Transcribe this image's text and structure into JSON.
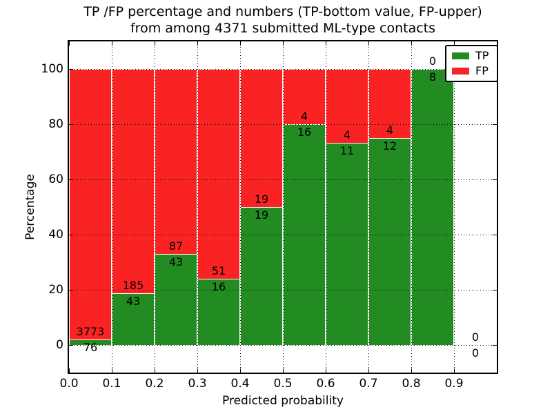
{
  "title": {
    "line1": "TP /FP percentage and numbers (TP-bottom value, FP-upper)",
    "line2": "from among 4371 submitted ML-type contacts"
  },
  "x_axis": {
    "label": "Predicted probability",
    "ticks": [
      "0.0",
      "0.1",
      "0.2",
      "0.3",
      "0.4",
      "0.5",
      "0.6",
      "0.7",
      "0.8",
      "0.9"
    ],
    "tick_values": [
      0.0,
      0.1,
      0.2,
      0.3,
      0.4,
      0.5,
      0.6,
      0.7,
      0.8,
      0.9
    ]
  },
  "y_axis": {
    "label": "Percentage",
    "ticks": [
      "0",
      "20",
      "40",
      "60",
      "80",
      "100"
    ],
    "tick_values": [
      0,
      20,
      40,
      60,
      80,
      100
    ]
  },
  "legend": {
    "position": "upper right",
    "items": [
      {
        "label": "TP",
        "color": "#228B22"
      },
      {
        "label": "FP",
        "color": "#FA2323"
      }
    ]
  },
  "chart_data": {
    "type": "bar",
    "stacked": true,
    "percent_normalized": true,
    "title": "TP /FP percentage and numbers (TP-bottom value, FP-upper) from among 4371 submitted ML-type contacts",
    "xlabel": "Predicted probability",
    "ylabel": "Percentage",
    "xlim": [
      0.0,
      1.0
    ],
    "ylim": [
      -10,
      110
    ],
    "grid": true,
    "grid_style": "black dotted, drawn above bars; bars have white edges",
    "legend_position": "upper right",
    "bin_edges": [
      0.0,
      0.1,
      0.2,
      0.3,
      0.4,
      0.5,
      0.6,
      0.7,
      0.8,
      0.9,
      1.0
    ],
    "bins": [
      "0.0-0.1",
      "0.1-0.2",
      "0.2-0.3",
      "0.3-0.4",
      "0.4-0.5",
      "0.5-0.6",
      "0.6-0.7",
      "0.7-0.8",
      "0.8-0.9",
      "0.9-1.0"
    ],
    "series": [
      {
        "name": "TP",
        "color": "#228B22",
        "counts": [
          76,
          43,
          43,
          16,
          19,
          16,
          11,
          12,
          8,
          0
        ],
        "percent": [
          1.97,
          18.86,
          33.08,
          23.88,
          50.0,
          80.0,
          73.33,
          75.0,
          100.0,
          0
        ]
      },
      {
        "name": "FP",
        "color": "#FA2323",
        "counts": [
          3773,
          185,
          87,
          51,
          19,
          4,
          4,
          4,
          0,
          0
        ],
        "percent": [
          98.03,
          81.14,
          66.92,
          76.12,
          50.0,
          20.0,
          26.67,
          25.0,
          0.0,
          0
        ]
      }
    ],
    "annotation_note": "FP count printed above each bin's TP/FP boundary, TP count printed below it",
    "total_contacts": 4371
  }
}
